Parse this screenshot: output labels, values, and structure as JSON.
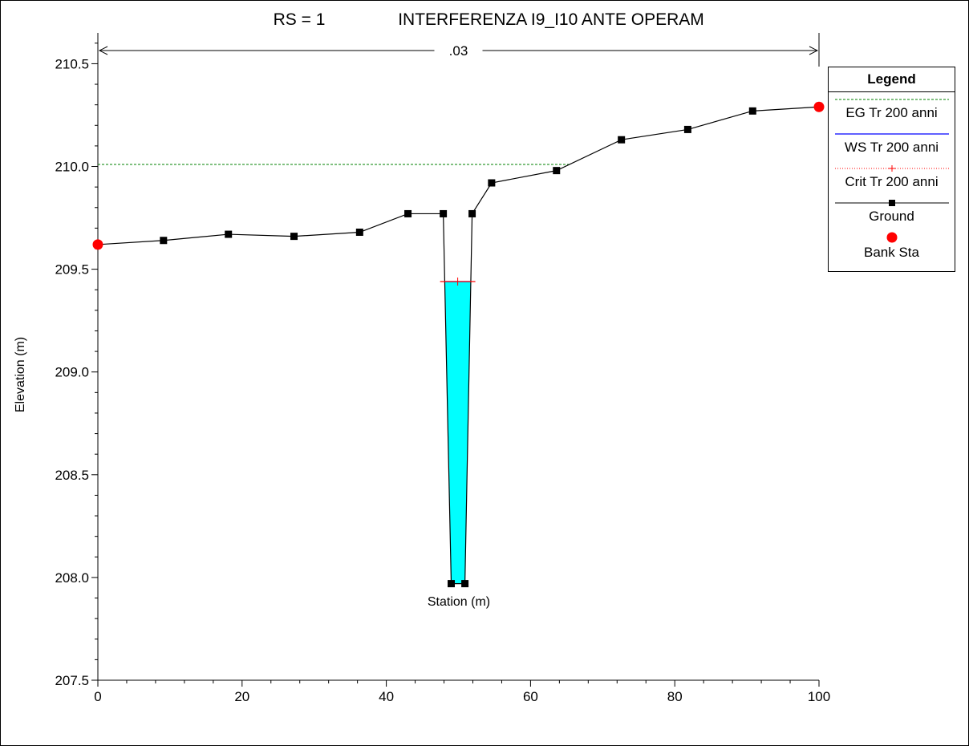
{
  "chart_data": {
    "type": "line",
    "title_rs": "RS = 1",
    "title_name": "INTERFERENZA I9_I10 ANTE OPERAM",
    "xlabel": "Station (m)",
    "ylabel": "Elevation (m)",
    "xlim": [
      0,
      100
    ],
    "ylim": [
      207.5,
      210.65
    ],
    "x_ticks": [
      "0",
      "20",
      "40",
      "60",
      "80",
      "100"
    ],
    "y_ticks": [
      "207.5",
      "208.0",
      "208.5",
      "209.0",
      "209.5",
      "210.0",
      "210.5"
    ],
    "manning_label": ".03",
    "manning_range": [
      0,
      100
    ],
    "ground": {
      "name": "Ground",
      "x": [
        0,
        9.1,
        18.1,
        27.2,
        36.3,
        43.0,
        47.9,
        49.0,
        50.9,
        51.9,
        54.6,
        63.6,
        72.6,
        81.8,
        90.8,
        100
      ],
      "y": [
        209.62,
        209.64,
        209.67,
        209.66,
        209.68,
        209.77,
        209.77,
        207.97,
        207.97,
        209.77,
        209.92,
        209.98,
        210.13,
        210.18,
        210.27,
        210.29
      ]
    },
    "bank_sta": {
      "name": "Bank Sta",
      "x": [
        0,
        100
      ],
      "y": [
        209.62,
        210.29
      ]
    },
    "eg": {
      "name": "EG Tr 200 anni",
      "elevation": 210.01,
      "x_range": [
        0,
        65.5
      ]
    },
    "ws": {
      "name": "WS Tr 200 anni",
      "elevation": 209.44
    },
    "crit": {
      "name": "Crit Tr 200 anni",
      "elevation": 209.44,
      "x_range": [
        47.9,
        51.9
      ],
      "marker_x": 49.9
    },
    "legend_title": "Legend",
    "colors": {
      "ground": "#000000",
      "eg": "#008000",
      "ws": "#0000ff",
      "crit": "#ff0000",
      "bank": "#ff0000",
      "water": "#00ffff"
    }
  }
}
